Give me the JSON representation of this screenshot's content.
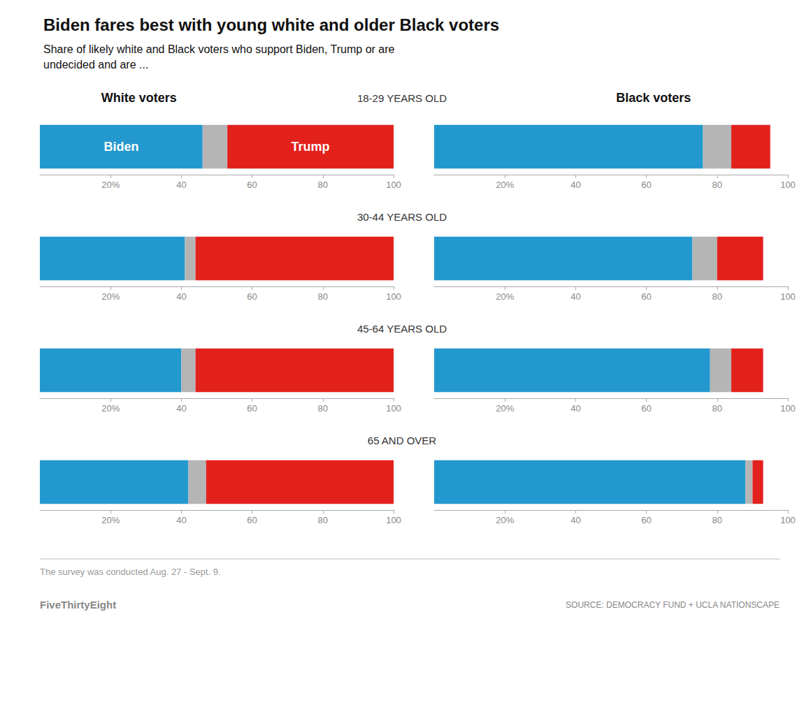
{
  "title": "Biden fares best with young white and older Black voters",
  "subtitle": "Share of likely white and Black voters who support Biden, Trump or are\nundecided and are ...",
  "footnote": "The survey was conducted Aug. 27 - Sept. 9.",
  "brand": "FiveThirtyEight",
  "source": "SOURCE: DEMOCRACY FUND + UCLA NATIONSCAPE",
  "chart_data": [
    {
      "type": "bar",
      "title": "White voters",
      "orientation": "horizontal",
      "stacked": true,
      "grid": false,
      "tick_labels": "x",
      "categories": [
        "18-29 YEARS OLD",
        "30-44 YEARS OLD",
        "45-64 YEARS OLD",
        "65 AND OVER"
      ],
      "series": [
        {
          "name": "Biden",
          "color": "#2398ce",
          "values": [
            46,
            41,
            40,
            42
          ]
        },
        {
          "color": "#b5b5b5",
          "values": [
            7,
            3,
            4,
            5
          ]
        },
        {
          "name": "Trump",
          "color": "#e3211c",
          "values": [
            47,
            56,
            56,
            53
          ]
        }
      ],
      "annotations": [
        {
          "text": "Biden",
          "category": "18-29 YEARS OLD"
        },
        {
          "text": "Trump",
          "category": "18-29 YEARS OLD"
        }
      ],
      "xlim": [
        0,
        100
      ],
      "xticks": [
        {
          "value": 20,
          "label": "20%"
        },
        40,
        60,
        80,
        100
      ]
    },
    {
      "type": "bar",
      "title": "Black voters",
      "orientation": "horizontal",
      "stacked": true,
      "grid": false,
      "tick_labels": "x",
      "categories": [
        "18-29 YEARS OLD",
        "30-44 YEARS OLD",
        "45-64 YEARS OLD",
        "65 AND OVER"
      ],
      "series": [
        {
          "name": "Biden",
          "color": "#2398ce",
          "values": [
            76,
            73,
            78,
            88
          ]
        },
        {
          "color": "#b5b5b5",
          "values": [
            8,
            7,
            6,
            2
          ]
        },
        {
          "name": "Trump",
          "color": "#e3211c",
          "values": [
            11,
            13,
            9,
            3
          ]
        }
      ],
      "xlim": [
        0,
        100
      ],
      "xticks": [
        {
          "value": 20,
          "label": "20%"
        },
        40,
        60,
        80,
        100
      ]
    }
  ]
}
